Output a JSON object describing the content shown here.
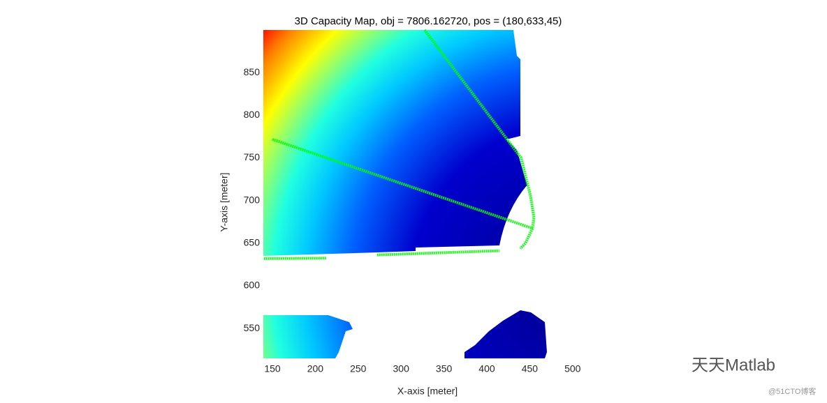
{
  "chart_data": {
    "type": "line",
    "title": "3D Capacity Map, obj = 7806.162720, pos = (180,633,45)",
    "xlabel": "X-axis [meter]",
    "ylabel": "Y-axis [meter]",
    "xlim": [
      139.4,
      501
    ],
    "ylim": [
      515,
      900
    ],
    "xticks": [
      150,
      200,
      250,
      300,
      350,
      400,
      450,
      500
    ],
    "yticks": [
      550,
      600,
      650,
      700,
      750,
      800,
      850
    ],
    "series": [
      {
        "color": "#00ff00",
        "x": [
          150,
          453.6
        ],
        "y": [
          771.8,
          667.3
        ]
      },
      {
        "color": "#00ff00",
        "x": [
          327.4,
          440,
          451,
          455,
          453,
          445,
          439
        ],
        "y": [
          900,
          750,
          705,
          680,
          667,
          650,
          643.7
        ]
      },
      {
        "color": "#00ff00",
        "x": [
          272,
          414.5
        ],
        "y": [
          636.3,
          641.2
        ]
      },
      {
        "color": "#00ff00",
        "x": [
          140,
          213
        ],
        "y": [
          632,
          632.5
        ]
      }
    ]
  },
  "watermark": {
    "text": "天天Matlab",
    "source": "@51CTO博客"
  }
}
